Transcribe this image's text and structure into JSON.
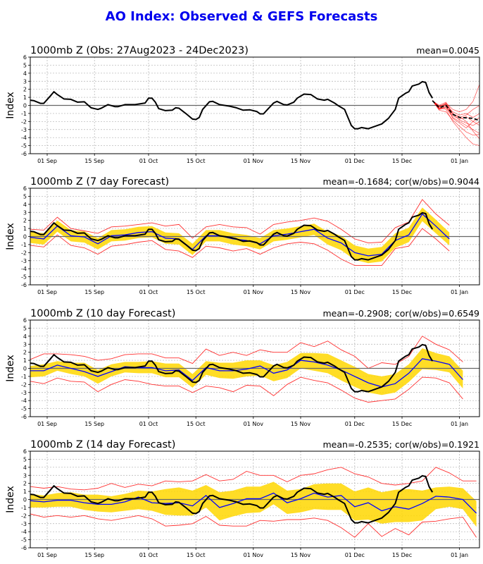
{
  "title": "AO Index: Observed & GEFS Forecasts",
  "colors": {
    "title": "#0000ee",
    "observed": "#000000",
    "ens_mean": "#0000ff",
    "band": "#ffd700",
    "bounds": "#ff3030",
    "members": "#ff0000",
    "grid": "#b0b0b0"
  },
  "chart_data": [
    {
      "type": "line",
      "title": "1000mb Z (Obs: 27Aug2023 - 24Dec2023)",
      "stats": "mean=0.0045",
      "ylabel": "Index",
      "ylim": [
        -6,
        6
      ],
      "yticks": [
        "-6",
        "-5",
        "-4",
        "-3",
        "-2",
        "-1",
        "0",
        "1",
        "2",
        "3",
        "4",
        "5",
        "6"
      ],
      "xticks": [
        {
          "date": "2023-09-01",
          "label": "01 Sep"
        },
        {
          "date": "2023-09-15",
          "label": "15 Sep"
        },
        {
          "date": "2023-10-01",
          "label": "01 Oct"
        },
        {
          "date": "2023-10-15",
          "label": "15 Oct"
        },
        {
          "date": "2023-11-01",
          "label": "01 Nov"
        },
        {
          "date": "2023-11-15",
          "label": "15 Nov"
        },
        {
          "date": "2023-12-01",
          "label": "01 Dec"
        },
        {
          "date": "2023-12-15",
          "label": "15 Dec"
        },
        {
          "date": "2024-01-01",
          "label": "01 Jan"
        }
      ],
      "xlim": [
        "2023-08-27",
        "2024-01-07"
      ],
      "grid": true,
      "observed": "obs",
      "ensemble": {
        "dates": [
          "2023-12-24",
          "2023-12-26",
          "2023-12-28",
          "2023-12-30",
          "2024-01-01",
          "2024-01-03",
          "2024-01-05",
          "2024-01-07"
        ],
        "members": [
          [
            0.6,
            -0.2,
            0.3,
            -0.5,
            -0.8,
            -0.5,
            0.5,
            2.7
          ],
          [
            0.6,
            -0.4,
            0.2,
            -1.0,
            -1.5,
            -1.2,
            -0.5,
            0.0
          ],
          [
            0.6,
            -0.5,
            -0.3,
            -1.5,
            -2.0,
            -2.5,
            -3.0,
            -3.5
          ],
          [
            0.6,
            -0.3,
            -0.5,
            -2.0,
            -3.0,
            -4.0,
            -4.8,
            -5.0
          ],
          [
            0.6,
            0.0,
            0.4,
            -1.0,
            -1.8,
            -2.2,
            -2.5,
            -2.0
          ],
          [
            0.6,
            -0.6,
            -0.8,
            -1.8,
            -2.6,
            -3.3,
            -3.7,
            -3.6
          ],
          [
            0.6,
            -0.2,
            0.1,
            -0.8,
            -1.2,
            -1.0,
            -1.5,
            -1.0
          ],
          [
            0.6,
            -0.4,
            -0.2,
            -1.3,
            -1.7,
            -1.4,
            -2.0,
            -2.5
          ],
          [
            0.6,
            -0.1,
            0.2,
            -1.6,
            -2.2,
            -2.8,
            -2.0,
            -1.5
          ],
          [
            0.6,
            -0.5,
            -0.1,
            -1.1,
            -1.4,
            -2.0,
            -3.2,
            -4.2
          ]
        ],
        "mean": [
          0.6,
          -0.3,
          0.0,
          -1.1,
          -1.5,
          -1.55,
          -1.6,
          -1.9
        ]
      }
    },
    {
      "type": "line",
      "title": "1000mb Z (7 day Forecast)",
      "stats": "mean=-0.1684; cor(w/obs)=0.9044",
      "ylabel": "Index",
      "ylim": [
        -6,
        6
      ],
      "grid": true,
      "observed": "obs",
      "forecast": {
        "mean": [
          -0.1,
          -0.3,
          1.3,
          0.1,
          -0.05,
          -0.9,
          0.1,
          0.2,
          0.5,
          0.6,
          -0.2,
          -0.3,
          -1.6,
          0.1,
          0.1,
          -0.3,
          -0.5,
          -0.9,
          0.1,
          0.3,
          0.6,
          0.9,
          -0.2,
          -0.8,
          -2.0,
          -2.4,
          -2.2,
          -0.5,
          0.2,
          2.8,
          1.3,
          -0.3
        ],
        "band_high": [
          0.6,
          0.4,
          2.0,
          0.8,
          0.65,
          -0.2,
          0.8,
          0.9,
          1.2,
          1.3,
          0.5,
          0.4,
          -0.9,
          0.8,
          0.8,
          0.4,
          0.2,
          -0.2,
          0.8,
          1.0,
          1.3,
          1.6,
          0.6,
          0.1,
          -1.1,
          -1.5,
          -1.3,
          0.4,
          1.1,
          3.6,
          2.1,
          0.5
        ],
        "band_low": [
          -0.8,
          -1.0,
          0.6,
          -0.6,
          -0.75,
          -1.6,
          -0.6,
          -0.5,
          -0.2,
          -0.1,
          -0.9,
          -1.0,
          -2.3,
          -0.6,
          -0.6,
          -1.0,
          -1.2,
          -1.6,
          -0.6,
          -0.4,
          -0.1,
          0.2,
          -1.0,
          -1.7,
          -2.9,
          -3.3,
          -3.1,
          -1.4,
          -0.7,
          1.9,
          0.4,
          -1.1
        ],
        "max": [
          0.9,
          0.8,
          2.4,
          1.0,
          0.7,
          0.4,
          1.2,
          1.3,
          1.5,
          1.7,
          1.3,
          1.5,
          -0.2,
          1.2,
          1.5,
          1.2,
          1.1,
          0.3,
          1.5,
          1.8,
          2.0,
          2.3,
          1.9,
          0.9,
          -0.3,
          -0.8,
          -0.7,
          1.1,
          1.8,
          4.6,
          2.8,
          1.4
        ],
        "min": [
          -1.1,
          -1.3,
          0.2,
          -1.1,
          -1.4,
          -2.2,
          -1.2,
          -1.0,
          -0.7,
          -0.5,
          -1.6,
          -1.8,
          -2.6,
          -1.2,
          -1.4,
          -1.8,
          -1.5,
          -2.2,
          -1.4,
          -0.9,
          -0.7,
          -0.9,
          -1.7,
          -2.8,
          -3.6,
          -3.6,
          -3.6,
          -1.5,
          -1.2,
          1.0,
          -0.3,
          -1.8
        ]
      }
    },
    {
      "type": "line",
      "title": "1000mb Z (10 day Forecast)",
      "stats": "mean=-0.2908; cor(w/obs)=0.6549",
      "ylabel": "Index",
      "ylim": [
        -6,
        6
      ],
      "grid": true,
      "observed": "obs",
      "forecast": {
        "mean": [
          -0.3,
          -0.3,
          0.4,
          0.0,
          -0.4,
          -1.0,
          -0.4,
          0.2,
          0.1,
          0.1,
          -0.3,
          -0.2,
          -1.5,
          0.1,
          -0.3,
          -0.3,
          -0.1,
          0.3,
          -0.6,
          -0.2,
          1.0,
          0.8,
          0.4,
          -0.2,
          -1.0,
          -1.8,
          -2.3,
          -1.9,
          -0.6,
          1.2,
          0.9,
          0.5,
          -1.4
        ],
        "band_high": [
          0.3,
          0.5,
          0.9,
          0.7,
          0.7,
          -0.2,
          0.5,
          0.8,
          0.8,
          0.9,
          0.6,
          0.6,
          -0.7,
          0.9,
          0.7,
          0.7,
          1.0,
          1.0,
          0.4,
          0.8,
          1.9,
          1.9,
          1.8,
          1.0,
          0.2,
          -0.7,
          -1.0,
          -0.7,
          0.5,
          2.5,
          1.9,
          1.5,
          -0.3
        ],
        "band_low": [
          -1.1,
          -1.0,
          -0.3,
          -0.7,
          -1.0,
          -1.9,
          -1.0,
          -0.5,
          -0.6,
          -0.6,
          -1.1,
          -1.1,
          -2.4,
          -0.8,
          -1.2,
          -1.3,
          -1.0,
          -0.9,
          -1.6,
          -1.2,
          0.0,
          -0.3,
          -0.6,
          -1.5,
          -2.3,
          -3.0,
          -3.3,
          -3.0,
          -1.7,
          -0.1,
          -0.2,
          -0.5,
          -2.5
        ],
        "max": [
          1.1,
          1.8,
          1.8,
          1.7,
          1.5,
          1.0,
          1.2,
          1.7,
          1.8,
          1.8,
          1.3,
          1.3,
          0.6,
          2.4,
          1.6,
          2.0,
          1.6,
          2.3,
          2.0,
          2.0,
          3.2,
          2.7,
          3.4,
          2.3,
          1.5,
          0.0,
          0.7,
          0.5,
          1.5,
          4.0,
          3.0,
          2.3,
          0.8
        ],
        "min": [
          -1.6,
          -1.9,
          -1.2,
          -1.6,
          -1.7,
          -2.9,
          -2.0,
          -1.4,
          -1.6,
          -2.0,
          -2.2,
          -2.2,
          -3.0,
          -2.2,
          -2.4,
          -2.9,
          -2.1,
          -2.2,
          -3.4,
          -2.0,
          -1.1,
          -1.5,
          -1.8,
          -2.7,
          -3.7,
          -4.2,
          -4.0,
          -3.8,
          -2.6,
          -1.1,
          -1.2,
          -1.8,
          -3.8
        ]
      }
    },
    {
      "type": "line",
      "title": "1000mb Z (14 day Forecast)",
      "stats": "mean=-0.2535; cor(w/obs)=0.1921",
      "ylabel": "Index",
      "ylim": [
        -6,
        6
      ],
      "grid": true,
      "observed": "obs",
      "forecast": {
        "mean": [
          -0.15,
          -0.3,
          -0.1,
          -0.1,
          -0.4,
          -0.6,
          -0.6,
          -0.3,
          0.3,
          -0.4,
          -0.5,
          -0.4,
          -0.8,
          0.5,
          -1.0,
          -0.5,
          0.1,
          0.1,
          0.8,
          -0.4,
          0.1,
          0.8,
          0.3,
          0.5,
          -0.9,
          -0.4,
          -1.4,
          -0.9,
          -1.2,
          -0.5,
          0.4,
          0.3,
          0.0,
          -1.7
        ],
        "band_high": [
          0.7,
          0.5,
          0.8,
          0.9,
          0.6,
          0.6,
          0.4,
          0.7,
          1.1,
          1.0,
          1.3,
          1.5,
          1.1,
          1.8,
          0.9,
          1.1,
          1.6,
          1.6,
          2.2,
          1.1,
          1.3,
          1.9,
          2.0,
          2.0,
          1.0,
          1.5,
          0.9,
          1.2,
          1.3,
          1.1,
          1.5,
          1.6,
          1.4,
          -0.2
        ],
        "band_low": [
          -1.0,
          -1.0,
          -0.9,
          -0.9,
          -1.3,
          -1.5,
          -1.6,
          -1.4,
          -1.2,
          -1.4,
          -1.9,
          -2.0,
          -2.0,
          -1.0,
          -2.6,
          -2.1,
          -1.7,
          -1.6,
          -0.6,
          -1.8,
          -1.6,
          -1.2,
          -1.3,
          -1.3,
          -2.6,
          -2.5,
          -3.0,
          -2.8,
          -2.8,
          -2.6,
          -1.2,
          -0.9,
          -1.2,
          -3.4
        ],
        "max": [
          1.6,
          1.4,
          1.6,
          1.3,
          1.2,
          1.4,
          2.0,
          1.5,
          1.9,
          1.7,
          2.3,
          2.2,
          2.3,
          3.1,
          2.3,
          2.5,
          3.5,
          3.0,
          3.0,
          2.2,
          3.0,
          3.2,
          3.7,
          4.0,
          3.2,
          2.8,
          2.0,
          1.8,
          2.0,
          2.3,
          4.0,
          3.3,
          2.3,
          2.3
        ],
        "min": [
          -1.8,
          -2.2,
          -2.0,
          -2.2,
          -2.0,
          -2.4,
          -2.6,
          -2.3,
          -2.0,
          -2.4,
          -3.3,
          -3.2,
          -3.0,
          -2.1,
          -3.2,
          -3.3,
          -3.3,
          -2.6,
          -2.7,
          -2.5,
          -2.5,
          -2.3,
          -2.6,
          -3.5,
          -4.7,
          -3.0,
          -4.6,
          -3.6,
          -4.4,
          -2.8,
          -2.7,
          -2.4,
          -2.2,
          -4.7
        ]
      }
    }
  ],
  "forecast_dates": [
    "2023-08-27",
    "2023-08-31",
    "2023-09-04",
    "2023-09-08",
    "2023-09-12",
    "2023-09-16",
    "2023-09-20",
    "2023-09-24",
    "2023-09-28",
    "2023-10-02",
    "2023-10-06",
    "2023-10-10",
    "2023-10-14",
    "2023-10-18",
    "2023-10-22",
    "2023-10-26",
    "2023-10-30",
    "2023-11-03",
    "2023-11-07",
    "2023-11-11",
    "2023-11-15",
    "2023-11-19",
    "2023-11-23",
    "2023-11-27",
    "2023-12-01",
    "2023-12-05",
    "2023-12-09",
    "2023-12-13",
    "2023-12-17",
    "2023-12-21",
    "2023-12-25",
    "2023-12-29",
    "2024-01-02",
    "2024-01-06"
  ],
  "obs": [
    [
      "2023-08-27",
      0.65
    ],
    [
      "2023-08-28",
      0.6
    ],
    [
      "2023-08-30",
      0.25
    ],
    [
      "2023-08-31",
      0.25
    ],
    [
      "2023-09-02",
      1.2
    ],
    [
      "2023-09-03",
      1.7
    ],
    [
      "2023-09-04",
      1.35
    ],
    [
      "2023-09-06",
      0.8
    ],
    [
      "2023-09-08",
      0.75
    ],
    [
      "2023-09-10",
      0.4
    ],
    [
      "2023-09-12",
      0.45
    ],
    [
      "2023-09-14",
      -0.3
    ],
    [
      "2023-09-16",
      -0.5
    ],
    [
      "2023-09-17",
      -0.35
    ],
    [
      "2023-09-19",
      0.1
    ],
    [
      "2023-09-21",
      -0.15
    ],
    [
      "2023-09-22",
      -0.15
    ],
    [
      "2023-09-24",
      0.1
    ],
    [
      "2023-09-27",
      0.1
    ],
    [
      "2023-09-30",
      0.3
    ],
    [
      "2023-10-01",
      0.9
    ],
    [
      "2023-10-02",
      0.9
    ],
    [
      "2023-10-03",
      0.4
    ],
    [
      "2023-10-04",
      -0.4
    ],
    [
      "2023-10-06",
      -0.65
    ],
    [
      "2023-10-08",
      -0.6
    ],
    [
      "2023-10-09",
      -0.3
    ],
    [
      "2023-10-10",
      -0.35
    ],
    [
      "2023-10-12",
      -1.0
    ],
    [
      "2023-10-14",
      -1.7
    ],
    [
      "2023-10-15",
      -1.75
    ],
    [
      "2023-10-16",
      -1.5
    ],
    [
      "2023-10-17",
      -0.5
    ],
    [
      "2023-10-19",
      0.45
    ],
    [
      "2023-10-20",
      0.5
    ],
    [
      "2023-10-22",
      0.1
    ],
    [
      "2023-10-25",
      -0.1
    ],
    [
      "2023-10-27",
      -0.3
    ],
    [
      "2023-10-29",
      -0.6
    ],
    [
      "2023-10-31",
      -0.55
    ],
    [
      "2023-11-02",
      -0.75
    ],
    [
      "2023-11-03",
      -1.05
    ],
    [
      "2023-11-04",
      -1.05
    ],
    [
      "2023-11-05",
      -0.6
    ],
    [
      "2023-11-07",
      0.3
    ],
    [
      "2023-11-08",
      0.5
    ],
    [
      "2023-11-10",
      0.1
    ],
    [
      "2023-11-11",
      0.05
    ],
    [
      "2023-11-13",
      0.4
    ],
    [
      "2023-11-14",
      0.9
    ],
    [
      "2023-11-16",
      1.4
    ],
    [
      "2023-11-18",
      1.35
    ],
    [
      "2023-11-20",
      0.8
    ],
    [
      "2023-11-22",
      0.65
    ],
    [
      "2023-11-23",
      0.75
    ],
    [
      "2023-11-25",
      0.3
    ],
    [
      "2023-11-26",
      0.0
    ],
    [
      "2023-11-28",
      -0.5
    ],
    [
      "2023-11-29",
      -1.5
    ],
    [
      "2023-11-30",
      -2.5
    ],
    [
      "2023-12-01",
      -2.9
    ],
    [
      "2023-12-02",
      -2.9
    ],
    [
      "2023-12-03",
      -2.75
    ],
    [
      "2023-12-05",
      -2.9
    ],
    [
      "2023-12-07",
      -2.6
    ],
    [
      "2023-12-09",
      -2.3
    ],
    [
      "2023-12-11",
      -1.6
    ],
    [
      "2023-12-13",
      -0.5
    ],
    [
      "2023-12-14",
      0.9
    ],
    [
      "2023-12-16",
      1.5
    ],
    [
      "2023-12-17",
      1.7
    ],
    [
      "2023-12-18",
      2.4
    ],
    [
      "2023-12-20",
      2.65
    ],
    [
      "2023-12-21",
      2.95
    ],
    [
      "2023-12-22",
      2.85
    ],
    [
      "2023-12-23",
      1.6
    ],
    [
      "2023-12-24",
      0.9
    ]
  ]
}
